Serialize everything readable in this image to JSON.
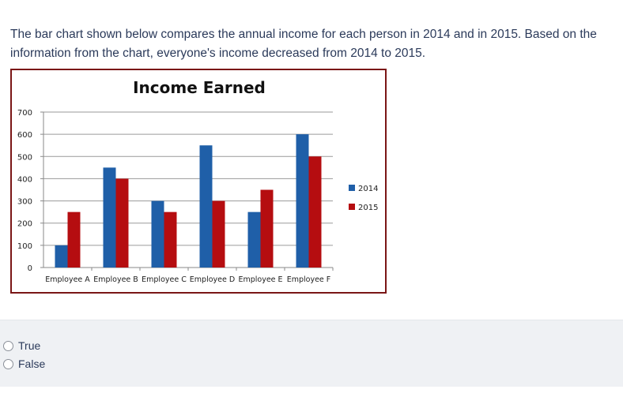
{
  "question": {
    "text": "The bar chart shown below compares the annual income for each person in 2014 and in 2015. Based on the information from the chart, everyone's income decreased from 2014 to 2015."
  },
  "options": [
    {
      "label": "True"
    },
    {
      "label": "False"
    }
  ],
  "colors": {
    "series_2014": "#1f5fa8",
    "series_2015": "#b50d10",
    "frame": "#7a1616"
  },
  "chart_data": {
    "type": "bar",
    "title": "Income Earned",
    "xlabel": "",
    "ylabel": "",
    "categories": [
      "Employee A",
      "Employee B",
      "Employee C",
      "Employee D",
      "Employee E",
      "Employee F"
    ],
    "series": [
      {
        "name": "2014",
        "values": [
          100,
          450,
          300,
          550,
          250,
          600
        ]
      },
      {
        "name": "2015",
        "values": [
          250,
          400,
          250,
          300,
          350,
          500
        ]
      }
    ],
    "ylim": [
      0,
      700
    ],
    "yticks": [
      0,
      100,
      200,
      300,
      400,
      500,
      600,
      700
    ],
    "grid": true,
    "legend": "right"
  }
}
